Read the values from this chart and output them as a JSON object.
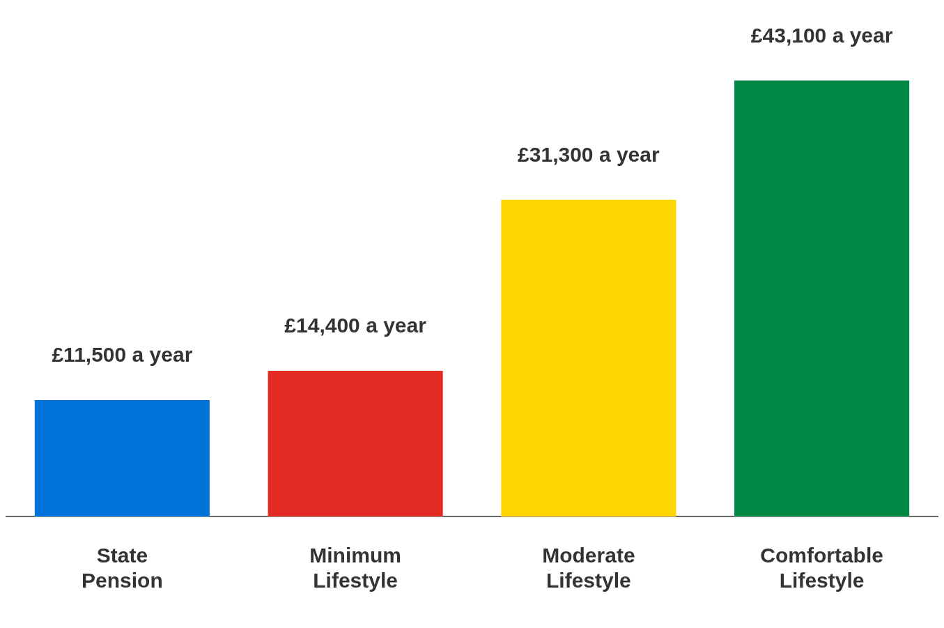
{
  "chart_data": {
    "type": "bar",
    "categories": [
      "State Pension",
      "Minimum Lifestyle",
      "Moderate Lifestyle",
      "Comfortable Lifestyle"
    ],
    "values": [
      11500,
      14400,
      31300,
      43100
    ],
    "colors": [
      "#0074d9",
      "#e22b22",
      "#fdd500",
      "#008844"
    ],
    "value_labels": [
      "£11,500 a year",
      "£14,400 a year",
      "£31,300 a year",
      "£43,100 a year"
    ]
  }
}
